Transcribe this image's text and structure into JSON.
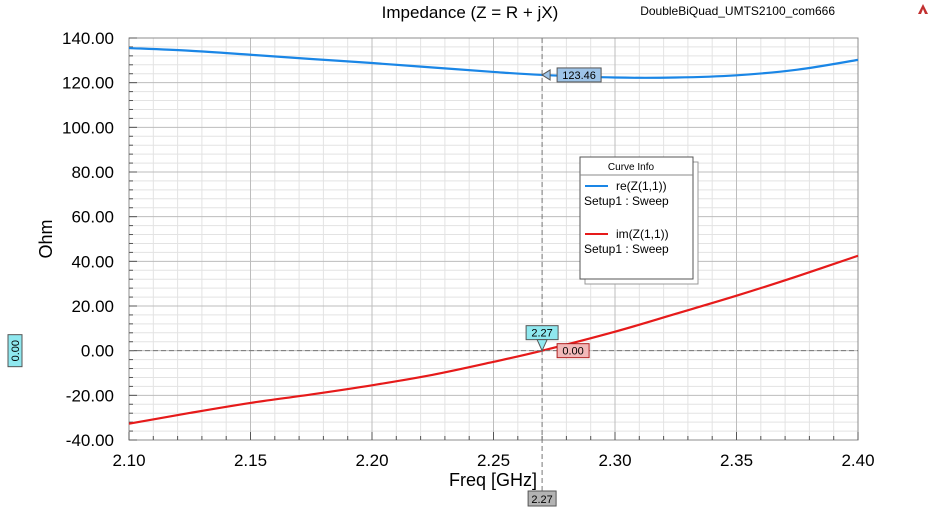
{
  "project_name": "DoubleBiQuad_UMTS2100_com666",
  "chart_data": {
    "type": "line",
    "title": "Impedance (Z = R + jX)",
    "xlabel": "Freq [GHz]",
    "ylabel": "Ohm",
    "xlim": [
      2.1,
      2.4
    ],
    "ylim": [
      -40,
      140
    ],
    "x_ticks": [
      "2.10",
      "2.15",
      "2.20",
      "2.25",
      "2.30",
      "2.35",
      "2.40"
    ],
    "x_tick_values": [
      2.1,
      2.15,
      2.2,
      2.25,
      2.3,
      2.35,
      2.4
    ],
    "y_ticks": [
      "140.00",
      "120.00",
      "100.00",
      "80.00",
      "60.00",
      "40.00",
      "20.00",
      "0.00",
      "-20.00",
      "-40.00"
    ],
    "y_tick_values": [
      140,
      120,
      100,
      80,
      60,
      40,
      20,
      0,
      -20,
      -40
    ],
    "grid": true,
    "legend": {
      "title": "Curve Info",
      "entries": [
        {
          "name": "re(Z(1,1))",
          "sub": "Setup1 : Sweep",
          "color": "#1a86e6"
        },
        {
          "name": "im(Z(1,1))",
          "sub": "Setup1 : Sweep",
          "color": "#e61a1a"
        }
      ]
    },
    "series": [
      {
        "name": "re(Z(1,1))",
        "color": "#1a86e6",
        "x": [
          2.1,
          2.125,
          2.15,
          2.175,
          2.2,
          2.225,
          2.25,
          2.27,
          2.3,
          2.325,
          2.35,
          2.375,
          2.4
        ],
        "y": [
          135.5,
          134.3,
          132.5,
          130.6,
          128.8,
          126.8,
          124.8,
          123.46,
          122.3,
          122.3,
          123.3,
          125.8,
          130.2
        ]
      },
      {
        "name": "im(Z(1,1))",
        "color": "#e61a1a",
        "x": [
          2.1,
          2.125,
          2.15,
          2.175,
          2.2,
          2.225,
          2.25,
          2.27,
          2.3,
          2.325,
          2.35,
          2.375,
          2.4
        ],
        "y": [
          -32.7,
          -27.9,
          -23.4,
          -19.6,
          -15.5,
          -10.8,
          -5.0,
          0.0,
          8.5,
          16.5,
          24.6,
          33.3,
          42.5
        ]
      }
    ],
    "markers": {
      "x_value": 2.27,
      "x_value_label": "2.27",
      "y_value_label": "0.00",
      "re_value": 123.46,
      "re_label": "123.46",
      "im_value": 0.0,
      "im_label": "0.00",
      "x_axis_label": "2.27"
    }
  }
}
